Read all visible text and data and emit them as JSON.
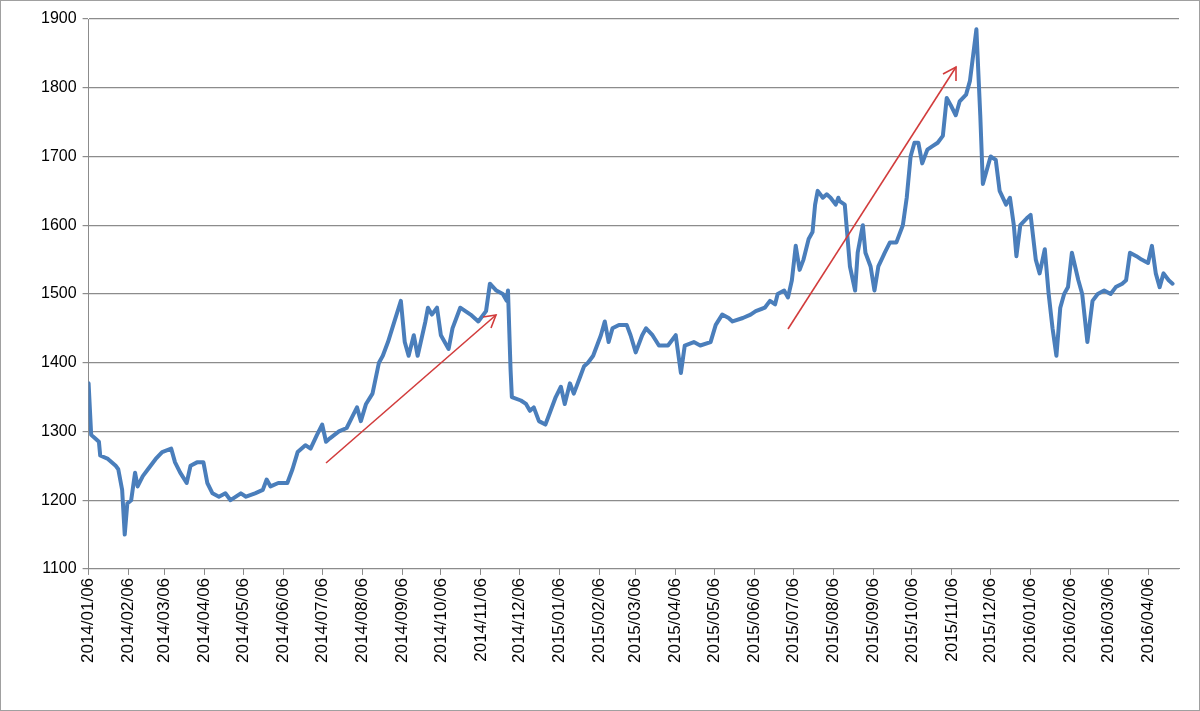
{
  "chart_data": {
    "type": "line",
    "x": [
      "2014-01-06",
      "2014-01-08",
      "2014-01-11",
      "2014-01-14",
      "2014-01-15",
      "2014-01-21",
      "2014-01-27",
      "2014-01-29",
      "2014-02-01",
      "2014-02-03",
      "2014-02-05",
      "2014-02-08",
      "2014-02-11",
      "2014-02-13",
      "2014-02-17",
      "2014-02-21",
      "2014-02-27",
      "2014-03-04",
      "2014-03-11",
      "2014-03-14",
      "2014-03-18",
      "2014-03-23",
      "2014-03-26",
      "2014-03-31",
      "2014-04-05",
      "2014-04-08",
      "2014-04-12",
      "2014-04-17",
      "2014-04-22",
      "2014-04-26",
      "2014-05-04",
      "2014-05-08",
      "2014-05-15",
      "2014-05-21",
      "2014-05-24",
      "2014-05-27",
      "2014-06-02",
      "2014-06-09",
      "2014-06-13",
      "2014-06-17",
      "2014-06-23",
      "2014-06-27",
      "2014-07-02",
      "2014-07-06",
      "2014-07-09",
      "2014-07-12",
      "2014-07-19",
      "2014-07-25",
      "2014-07-29",
      "2014-08-02",
      "2014-08-05",
      "2014-08-09",
      "2014-08-14",
      "2014-08-19",
      "2014-08-22",
      "2014-08-26",
      "2014-08-31",
      "2014-09-05",
      "2014-09-08",
      "2014-09-11",
      "2014-09-15",
      "2014-09-18",
      "2014-09-24",
      "2014-09-26",
      "2014-09-29",
      "2014-10-03",
      "2014-10-06",
      "2014-10-12",
      "2014-10-15",
      "2014-10-21",
      "2014-10-29",
      "2014-11-04",
      "2014-11-10",
      "2014-11-13",
      "2014-11-18",
      "2014-11-23",
      "2014-11-26",
      "2014-11-27",
      "2014-11-29",
      "2014-11-30",
      "2014-12-07",
      "2014-12-11",
      "2014-12-14",
      "2014-12-17",
      "2014-12-21",
      "2014-12-26",
      "2014-12-28",
      "2015-01-03",
      "2015-01-07",
      "2015-01-10",
      "2015-01-14",
      "2015-01-17",
      "2015-01-22",
      "2015-01-25",
      "2015-01-28",
      "2015-02-01",
      "2015-02-07",
      "2015-02-10",
      "2015-02-13",
      "2015-02-16",
      "2015-02-21",
      "2015-02-27",
      "2015-03-02",
      "2015-03-06",
      "2015-03-11",
      "2015-03-14",
      "2015-03-19",
      "2015-03-24",
      "2015-03-31",
      "2015-04-06",
      "2015-04-10",
      "2015-04-13",
      "2015-04-20",
      "2015-04-25",
      "2015-05-03",
      "2015-05-07",
      "2015-05-12",
      "2015-05-17",
      "2015-05-20",
      "2015-05-28",
      "2015-06-03",
      "2015-06-07",
      "2015-06-14",
      "2015-06-18",
      "2015-06-22",
      "2015-06-24",
      "2015-06-29",
      "2015-07-02",
      "2015-07-05",
      "2015-07-08",
      "2015-07-11",
      "2015-07-14",
      "2015-07-18",
      "2015-07-21",
      "2015-07-23",
      "2015-07-25",
      "2015-07-29",
      "2015-08-01",
      "2015-08-04",
      "2015-08-08",
      "2015-08-10",
      "2015-08-11",
      "2015-08-15",
      "2015-08-19",
      "2015-08-23",
      "2015-08-25",
      "2015-08-29",
      "2015-08-31",
      "2015-09-04",
      "2015-09-07",
      "2015-09-10",
      "2015-09-15",
      "2015-09-19",
      "2015-09-24",
      "2015-09-29",
      "2015-10-02",
      "2015-10-05",
      "2015-10-08",
      "2015-10-11",
      "2015-10-14",
      "2015-10-18",
      "2015-10-22",
      "2015-10-26",
      "2015-10-30",
      "2015-11-02",
      "2015-11-05",
      "2015-11-09",
      "2015-11-12",
      "2015-11-17",
      "2015-11-20",
      "2015-11-25",
      "2015-11-28",
      "2015-11-30",
      "2015-12-03",
      "2015-12-06",
      "2015-12-10",
      "2015-12-13",
      "2015-12-18",
      "2015-12-21",
      "2015-12-24",
      "2015-12-26",
      "2015-12-29",
      "2016-01-03",
      "2016-01-06",
      "2016-01-10",
      "2016-01-13",
      "2016-01-17",
      "2016-01-20",
      "2016-01-23",
      "2016-01-26",
      "2016-01-29",
      "2016-02-01",
      "2016-02-04",
      "2016-02-07",
      "2016-02-12",
      "2016-02-15",
      "2016-02-19",
      "2016-02-23",
      "2016-02-27",
      "2016-03-03",
      "2016-03-08",
      "2016-03-12",
      "2016-03-17",
      "2016-03-20",
      "2016-03-23",
      "2016-03-28",
      "2016-04-01",
      "2016-04-06",
      "2016-04-09",
      "2016-04-12",
      "2016-04-15",
      "2016-04-18",
      "2016-04-22",
      "2016-04-25"
    ],
    "series": [
      {
        "color": "#4a7ebb",
        "values": [
          1370,
          1295,
          1290,
          1285,
          1265,
          1260,
          1250,
          1245,
          1215,
          1150,
          1195,
          1200,
          1240,
          1220,
          1235,
          1245,
          1260,
          1270,
          1275,
          1255,
          1240,
          1225,
          1250,
          1255,
          1255,
          1225,
          1210,
          1205,
          1210,
          1200,
          1210,
          1205,
          1210,
          1215,
          1230,
          1220,
          1225,
          1225,
          1245,
          1270,
          1280,
          1275,
          1295,
          1310,
          1285,
          1290,
          1300,
          1305,
          1320,
          1335,
          1315,
          1340,
          1355,
          1400,
          1410,
          1430,
          1460,
          1490,
          1430,
          1410,
          1440,
          1410,
          1460,
          1480,
          1470,
          1480,
          1440,
          1420,
          1450,
          1480,
          1470,
          1460,
          1475,
          1515,
          1505,
          1500,
          1490,
          1505,
          1390,
          1350,
          1345,
          1340,
          1330,
          1335,
          1315,
          1310,
          1320,
          1350,
          1365,
          1340,
          1370,
          1355,
          1380,
          1395,
          1400,
          1410,
          1440,
          1460,
          1430,
          1450,
          1455,
          1455,
          1440,
          1415,
          1440,
          1450,
          1440,
          1425,
          1425,
          1440,
          1385,
          1425,
          1430,
          1425,
          1430,
          1455,
          1470,
          1465,
          1460,
          1465,
          1470,
          1475,
          1480,
          1490,
          1485,
          1500,
          1505,
          1495,
          1520,
          1570,
          1535,
          1550,
          1580,
          1590,
          1630,
          1650,
          1640,
          1645,
          1640,
          1630,
          1640,
          1635,
          1630,
          1540,
          1505,
          1560,
          1600,
          1560,
          1540,
          1505,
          1540,
          1560,
          1575,
          1575,
          1600,
          1640,
          1700,
          1720,
          1720,
          1690,
          1710,
          1715,
          1720,
          1730,
          1785,
          1775,
          1760,
          1780,
          1790,
          1810,
          1885,
          1760,
          1660,
          1680,
          1700,
          1695,
          1650,
          1630,
          1640,
          1600,
          1555,
          1600,
          1610,
          1615,
          1550,
          1530,
          1565,
          1500,
          1450,
          1410,
          1480,
          1500,
          1510,
          1560,
          1520,
          1500,
          1430,
          1490,
          1500,
          1505,
          1500,
          1510,
          1515,
          1520,
          1560,
          1555,
          1550,
          1545,
          1570,
          1530,
          1510,
          1530,
          1520,
          1515
        ]
      }
    ],
    "xlim": [
      "2014-01-06",
      "2016-04-30"
    ],
    "xticks": [
      {
        "value": "2014-01-06",
        "label": "2014/01/06"
      },
      {
        "value": "2014-02-06",
        "label": "2014/02/06"
      },
      {
        "value": "2014-03-06",
        "label": "2014/03/06"
      },
      {
        "value": "2014-04-06",
        "label": "2014/04/06"
      },
      {
        "value": "2014-05-06",
        "label": "2014/05/06"
      },
      {
        "value": "2014-06-06",
        "label": "2014/06/06"
      },
      {
        "value": "2014-07-06",
        "label": "2014/07/06"
      },
      {
        "value": "2014-08-06",
        "label": "2014/08/06"
      },
      {
        "value": "2014-09-06",
        "label": "2014/09/06"
      },
      {
        "value": "2014-10-06",
        "label": "2014/10/06"
      },
      {
        "value": "2014-11-06",
        "label": "2014/11/06"
      },
      {
        "value": "2014-12-06",
        "label": "2014/12/06"
      },
      {
        "value": "2015-01-06",
        "label": "2015/01/06"
      },
      {
        "value": "2015-02-06",
        "label": "2015/02/06"
      },
      {
        "value": "2015-03-06",
        "label": "2015/03/06"
      },
      {
        "value": "2015-04-06",
        "label": "2015/04/06"
      },
      {
        "value": "2015-05-06",
        "label": "2015/05/06"
      },
      {
        "value": "2015-06-06",
        "label": "2015/06/06"
      },
      {
        "value": "2015-07-06",
        "label": "2015/07/06"
      },
      {
        "value": "2015-08-06",
        "label": "2015/08/06"
      },
      {
        "value": "2015-09-06",
        "label": "2015/09/06"
      },
      {
        "value": "2015-10-06",
        "label": "2015/10/06"
      },
      {
        "value": "2015-11-06",
        "label": "2015/11/06"
      },
      {
        "value": "2015-12-06",
        "label": "2015/12/06"
      },
      {
        "value": "2016-01-06",
        "label": "2016/01/06"
      },
      {
        "value": "2016-02-06",
        "label": "2016/02/06"
      },
      {
        "value": "2016-03-06",
        "label": "2016/03/06"
      },
      {
        "value": "2016-04-06",
        "label": "2016/04/06"
      }
    ],
    "ylim": [
      1100,
      1900
    ],
    "yticks": [
      1100,
      1200,
      1300,
      1400,
      1500,
      1600,
      1700,
      1800,
      1900
    ],
    "grid": "y",
    "legend": false,
    "marker": "none",
    "line_style": "solid"
  }
}
